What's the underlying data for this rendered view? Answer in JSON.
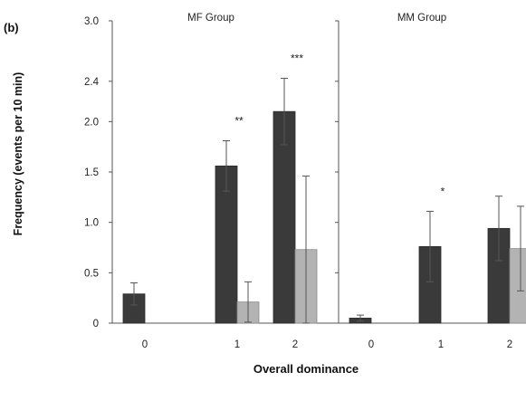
{
  "chart_data": {
    "type": "bar",
    "panel_label": "(b)",
    "ylabel": "Frequency (events per 10 min)",
    "xlabel": "Overall dominance",
    "ylim": [
      0,
      3.0
    ],
    "y_ticks": [
      0,
      0.5,
      1.0,
      1.5,
      2.0,
      2.4,
      3.0
    ],
    "y_tick_labels": [
      "0",
      "0.5",
      "1.0",
      "1.5",
      "2.0",
      "2.4",
      "3.0"
    ],
    "grid": false,
    "colors": {
      "dark": "#3a3a3a",
      "light": "#b3b3b3"
    },
    "panels": [
      {
        "title": "MF Group",
        "categories": [
          "0",
          "1",
          "2"
        ],
        "series": [
          {
            "values": [
              0.29,
              1.56,
              2.1
            ],
            "errors": [
              0.11,
              0.25,
              0.33
            ]
          },
          {
            "values": [
              0.0,
              0.21,
              0.73
            ],
            "errors": [
              0.0,
              0.2,
              0.73
            ]
          }
        ],
        "significance": [
          "",
          "**",
          "***"
        ]
      },
      {
        "title": "MM Group",
        "categories": [
          "0",
          "1",
          "2"
        ],
        "series": [
          {
            "values": [
              0.05,
              0.76,
              0.94
            ],
            "errors": [
              0.03,
              0.35,
              0.32
            ]
          },
          {
            "values": [
              0.0,
              0.0,
              0.74
            ],
            "errors": [
              0.0,
              0.0,
              0.42
            ]
          }
        ],
        "significance": [
          "",
          "*",
          ""
        ]
      }
    ]
  }
}
